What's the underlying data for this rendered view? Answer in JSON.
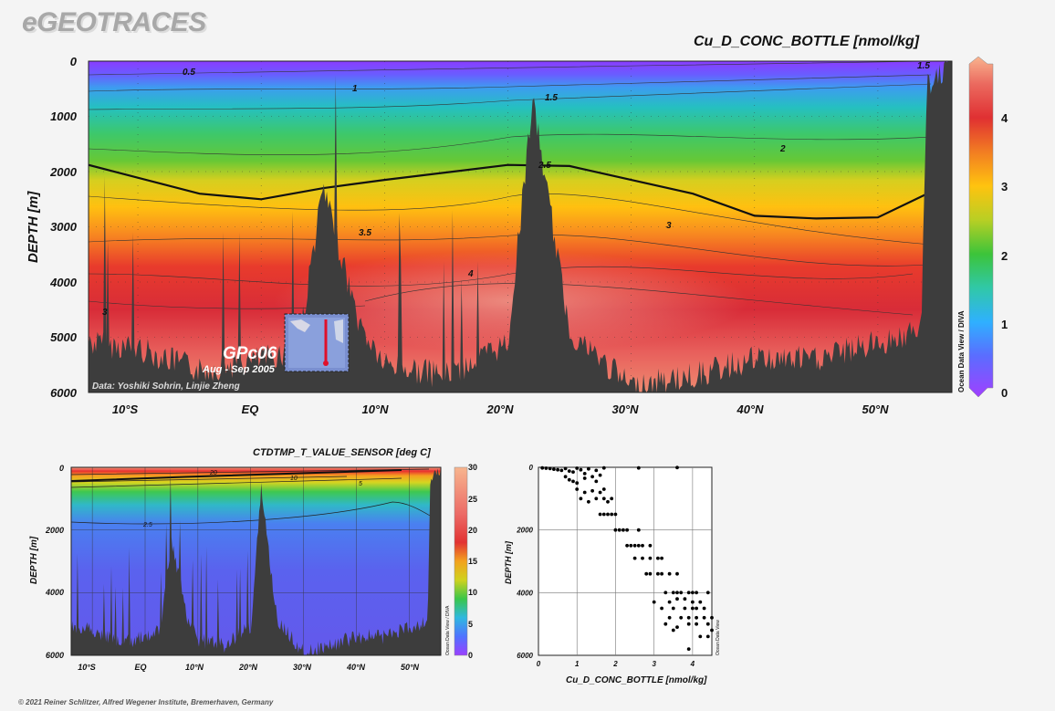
{
  "logo": "eGEOTRACES",
  "footer": "© 2021 Reiner Schlitzer, Alfred Wegener Institute, Bremerhaven, Germany",
  "main_plot": {
    "title": "Cu_D_CONC_BOTTLE [nmol/kg]",
    "ylabel": "DEPTH [m]",
    "y_ticks": [
      "0",
      "1000",
      "2000",
      "3000",
      "4000",
      "5000",
      "6000"
    ],
    "x_ticks": [
      "10°S",
      "EQ",
      "10°N",
      "20°N",
      "30°N",
      "40°N",
      "50°N"
    ],
    "colorbar_ticks": [
      "0",
      "1",
      "2",
      "3",
      "4"
    ],
    "colorbar_side_label": "Ocean Data View / DIVA",
    "data_credit": "Data: Yoshiki Sohrin, Linjie Zheng",
    "cruise": "GPc06",
    "cruise_dates": "Aug - Sep 2005",
    "contour_labels": [
      "0.5",
      "1",
      "1.5",
      "1.5",
      "2",
      "2.5",
      "3",
      "3",
      "3.5",
      "4"
    ]
  },
  "temp_plot": {
    "title": "CTDTMP_T_VALUE_SENSOR [deg C]",
    "ylabel": "DEPTH [m]",
    "y_ticks": [
      "0",
      "2000",
      "4000",
      "6000"
    ],
    "x_ticks": [
      "10°S",
      "EQ",
      "10°N",
      "20°N",
      "30°N",
      "40°N",
      "50°N"
    ],
    "colorbar_ticks": [
      "0",
      "5",
      "10",
      "15",
      "20",
      "25",
      "30"
    ],
    "colorbar_side_label": "Ocean Data View / DIVA",
    "contour_labels": [
      "20",
      "10",
      "5",
      "2.5"
    ]
  },
  "scatter_plot": {
    "xlabel": "Cu_D_CONC_BOTTLE [nmol/kg]",
    "ylabel": "DEPTH [m]",
    "side_label": "Ocean Data View"
  },
  "chart_data": [
    {
      "type": "heatmap",
      "title": "Cu_D_CONC_BOTTLE [nmol/kg]",
      "xlabel": "",
      "ylabel": "DEPTH [m]",
      "xlim": [
        -14,
        56
      ],
      "ylim": [
        6000,
        0
      ],
      "colorbar_range": [
        0,
        4.8
      ],
      "contour_levels": [
        0.5,
        1,
        1.5,
        2,
        2.5,
        3,
        3.5,
        4
      ],
      "isoline_2_5_depth_m": {
        "lat": [
          -14,
          -5,
          0,
          5,
          10,
          20,
          25,
          30,
          35,
          40,
          45,
          50,
          54
        ],
        "depth": [
          1880,
          2400,
          2500,
          2300,
          2150,
          1880,
          1900,
          2150,
          2400,
          2800,
          2850,
          2830,
          2400
        ]
      },
      "seafloor_depth_m": {
        "lat": [
          -14,
          -10,
          -5,
          0,
          3,
          5,
          8,
          10,
          15,
          20,
          22,
          25,
          30,
          35,
          40,
          45,
          50,
          53.5,
          54,
          56
        ],
        "depth": [
          5000,
          5100,
          5500,
          5300,
          5100,
          2200,
          4700,
          5400,
          5600,
          5000,
          600,
          4800,
          5800,
          5600,
          5300,
          5300,
          5000,
          4800,
          300,
          0
        ]
      }
    },
    {
      "type": "heatmap",
      "title": "CTDTMP_T_VALUE_SENSOR [deg C]",
      "xlabel": "",
      "ylabel": "DEPTH [m]",
      "xlim": [
        -14,
        56
      ],
      "ylim": [
        6000,
        0
      ],
      "colorbar_range": [
        0,
        30
      ],
      "contour_levels": [
        2.5,
        5,
        10,
        20
      ]
    },
    {
      "type": "scatter",
      "title": "",
      "xlabel": "Cu_D_CONC_BOTTLE [nmol/kg]",
      "ylabel": "DEPTH [m]",
      "xlim": [
        0,
        4.5
      ],
      "ylim": [
        6000,
        0
      ],
      "x_ticks": [
        0,
        1,
        2,
        3,
        4
      ],
      "y_ticks": [
        0,
        2000,
        4000,
        6000
      ],
      "grid": true,
      "points": [
        [
          0.1,
          20
        ],
        [
          0.2,
          30
        ],
        [
          0.3,
          40
        ],
        [
          0.4,
          60
        ],
        [
          0.5,
          80
        ],
        [
          0.6,
          100
        ],
        [
          0.7,
          40
        ],
        [
          0.8,
          120
        ],
        [
          0.9,
          150
        ],
        [
          1.0,
          30
        ],
        [
          1.1,
          80
        ],
        [
          1.2,
          200
        ],
        [
          1.3,
          50
        ],
        [
          1.5,
          100
        ],
        [
          1.6,
          250
        ],
        [
          1.7,
          20
        ],
        [
          2.6,
          20
        ],
        [
          3.6,
          10
        ],
        [
          0.7,
          300
        ],
        [
          0.8,
          400
        ],
        [
          0.9,
          450
        ],
        [
          1.0,
          500
        ],
        [
          1.2,
          350
        ],
        [
          1.4,
          300
        ],
        [
          1.5,
          450
        ],
        [
          1.0,
          700
        ],
        [
          1.2,
          800
        ],
        [
          1.4,
          750
        ],
        [
          1.6,
          800
        ],
        [
          1.7,
          700
        ],
        [
          1.1,
          1000
        ],
        [
          1.3,
          1100
        ],
        [
          1.5,
          1000
        ],
        [
          1.7,
          1000
        ],
        [
          1.8,
          1100
        ],
        [
          1.9,
          1000
        ],
        [
          1.6,
          1500
        ],
        [
          1.7,
          1500
        ],
        [
          1.8,
          1500
        ],
        [
          1.9,
          1500
        ],
        [
          2.0,
          1500
        ],
        [
          2.0,
          2000
        ],
        [
          2.1,
          2000
        ],
        [
          2.2,
          2000
        ],
        [
          2.3,
          2000
        ],
        [
          2.6,
          2000
        ],
        [
          2.3,
          2500
        ],
        [
          2.4,
          2500
        ],
        [
          2.5,
          2500
        ],
        [
          2.6,
          2500
        ],
        [
          2.7,
          2500
        ],
        [
          2.9,
          2500
        ],
        [
          2.5,
          2900
        ],
        [
          2.7,
          2900
        ],
        [
          2.9,
          2900
        ],
        [
          3.1,
          2900
        ],
        [
          3.2,
          2900
        ],
        [
          2.8,
          3400
        ],
        [
          2.9,
          3400
        ],
        [
          3.1,
          3400
        ],
        [
          3.2,
          3400
        ],
        [
          3.4,
          3400
        ],
        [
          3.6,
          3400
        ],
        [
          3.3,
          4000
        ],
        [
          3.5,
          4000
        ],
        [
          3.6,
          4000
        ],
        [
          3.7,
          4000
        ],
        [
          3.9,
          4000
        ],
        [
          4.0,
          4000
        ],
        [
          4.1,
          4000
        ],
        [
          4.4,
          4000
        ],
        [
          3.0,
          4300
        ],
        [
          3.4,
          4300
        ],
        [
          3.6,
          4200
        ],
        [
          3.8,
          4200
        ],
        [
          4.0,
          4300
        ],
        [
          4.2,
          4300
        ],
        [
          3.2,
          4500
        ],
        [
          3.5,
          4500
        ],
        [
          3.8,
          4500
        ],
        [
          4.0,
          4500
        ],
        [
          4.1,
          4500
        ],
        [
          4.3,
          4500
        ],
        [
          3.4,
          4800
        ],
        [
          3.7,
          4800
        ],
        [
          3.9,
          4800
        ],
        [
          4.1,
          4800
        ],
        [
          4.3,
          4800
        ],
        [
          4.5,
          4800
        ],
        [
          3.3,
          5000
        ],
        [
          3.6,
          5100
        ],
        [
          3.9,
          5000
        ],
        [
          4.1,
          5000
        ],
        [
          4.4,
          5000
        ],
        [
          3.5,
          5200
        ],
        [
          4.2,
          5400
        ],
        [
          4.4,
          5400
        ],
        [
          4.5,
          5200
        ],
        [
          3.9,
          5800
        ]
      ]
    }
  ]
}
